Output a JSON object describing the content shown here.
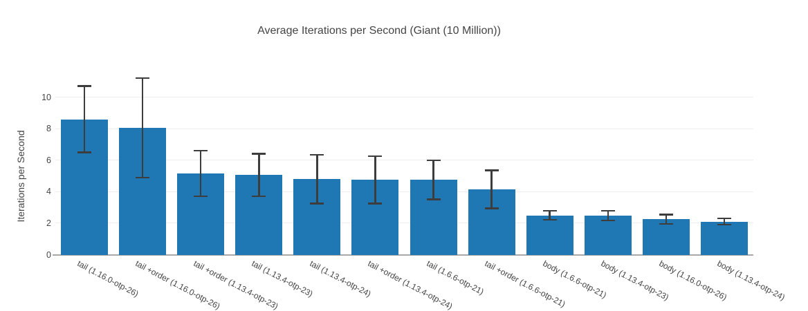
{
  "chart_data": {
    "type": "bar",
    "title": "Average Iterations per Second (Giant (10 Million))",
    "ylabel": "Iterations per Second",
    "xlabel": "",
    "categories": [
      "tail (1.16.0-otp-26)",
      "tail +order (1.16.0-otp-26)",
      "tail +order (1.13.4-otp-23)",
      "tail (1.13.4-otp-23)",
      "tail (1.13.4-otp-24)",
      "tail +order (1.13.4-otp-24)",
      "tail (1.6.6-otp-21)",
      "tail +order (1.6.6-otp-21)",
      "body (1.6.6-otp-21)",
      "body (1.13.4-otp-23)",
      "body (1.16.0-otp-26)",
      "body (1.13.4-otp-24)"
    ],
    "values": [
      8.6,
      8.05,
      5.15,
      5.05,
      4.8,
      4.75,
      4.75,
      4.15,
      2.5,
      2.48,
      2.25,
      2.1
    ],
    "error_bars": [
      2.1,
      3.15,
      1.45,
      1.35,
      1.55,
      1.5,
      1.25,
      1.2,
      0.28,
      0.3,
      0.3,
      0.2
    ],
    "yticks": [
      0,
      2,
      4,
      6,
      8,
      10
    ],
    "ylim": [
      0,
      12
    ],
    "grid": true,
    "legend": "none",
    "x_tick_angle_deg": 28,
    "colors": {
      "bar": "#1f77b4",
      "error_bar": "#3d3d3d",
      "gridline": "#ededed",
      "axis_line": "#a8a8a8",
      "text": "#444444"
    }
  }
}
